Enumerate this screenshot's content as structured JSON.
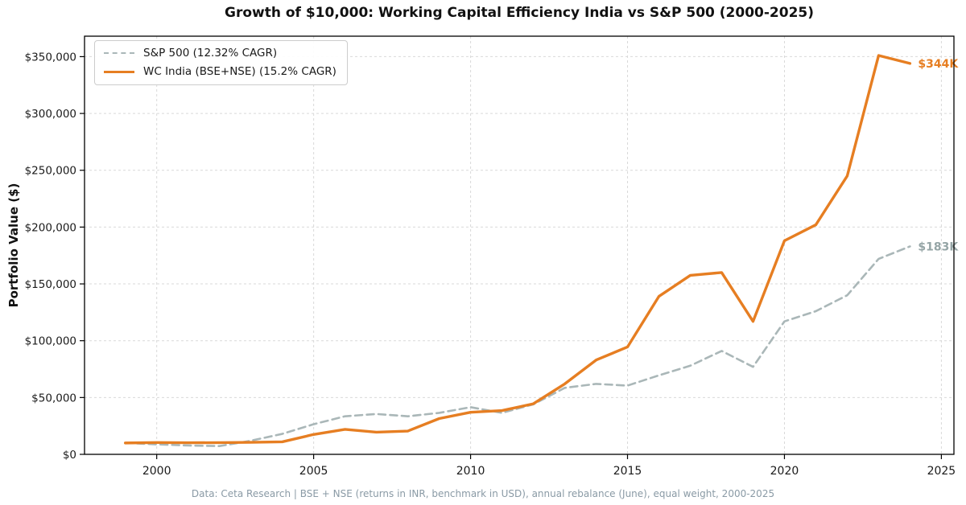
{
  "title": "Growth of $10,000: Working Capital Efficiency India vs S&P 500 (2000-2025)",
  "footer": "Data: Ceta Research | BSE + NSE (returns in INR, benchmark in USD), annual rebalance (June), equal weight, 2000-2025",
  "colors": {
    "wc_india_orange": "#e67e22",
    "sp500_gray": "#aab7b8",
    "sp500_label_gray": "#95a5a6",
    "grid": "#d9d9d9",
    "footer_text": "#8a9aa5"
  },
  "chart_data": {
    "type": "line",
    "title": "Growth of $10,000: Working Capital Efficiency India vs S&P 500 (2000-2025)",
    "xlabel": "",
    "ylabel": "Portfolio Value ($)",
    "x": [
      1999,
      2000,
      2001,
      2002,
      2003,
      2004,
      2005,
      2006,
      2007,
      2008,
      2009,
      2010,
      2011,
      2012,
      2013,
      2014,
      2015,
      2016,
      2017,
      2018,
      2019,
      2020,
      2021,
      2022,
      2023,
      2024
    ],
    "series": [
      {
        "id": "sp500",
        "name": "S&P 500 (12.32% CAGR)",
        "color": "#aab7b8",
        "dash": true,
        "width": 2.6,
        "end_label": "$183K",
        "end_label_color": "#95a5a6",
        "values": [
          10000,
          8800,
          7800,
          7300,
          12000,
          18000,
          26500,
          33500,
          35500,
          33500,
          36500,
          41500,
          36500,
          44000,
          58500,
          62000,
          60500,
          69500,
          78000,
          91000,
          77000,
          117000,
          126000,
          140000,
          172000,
          183000
        ]
      },
      {
        "id": "wc-india",
        "name": "WC India (BSE+NSE) (15.2% CAGR)",
        "color": "#e67e22",
        "dash": false,
        "width": 3.4,
        "end_label": "$344K",
        "end_label_color": "#e67e22",
        "values": [
          10000,
          10400,
          10200,
          10300,
          10600,
          11000,
          17500,
          22000,
          19500,
          20500,
          31500,
          37000,
          38500,
          44500,
          62000,
          83000,
          94500,
          139000,
          157500,
          160000,
          117000,
          188000,
          202000,
          245000,
          351000,
          344000
        ]
      }
    ],
    "xlim": [
      1997.7,
      2025.4
    ],
    "ylim": [
      0,
      368000
    ],
    "xticks": [
      2000,
      2005,
      2010,
      2015,
      2020,
      2025
    ],
    "yticks": [
      0,
      50000,
      100000,
      150000,
      200000,
      250000,
      300000,
      350000
    ],
    "ytick_labels": [
      "$0",
      "$50,000",
      "$100,000",
      "$150,000",
      "$200,000",
      "$250,000",
      "$300,000",
      "$350,000"
    ],
    "grid": true,
    "legend_position": "upper left"
  }
}
